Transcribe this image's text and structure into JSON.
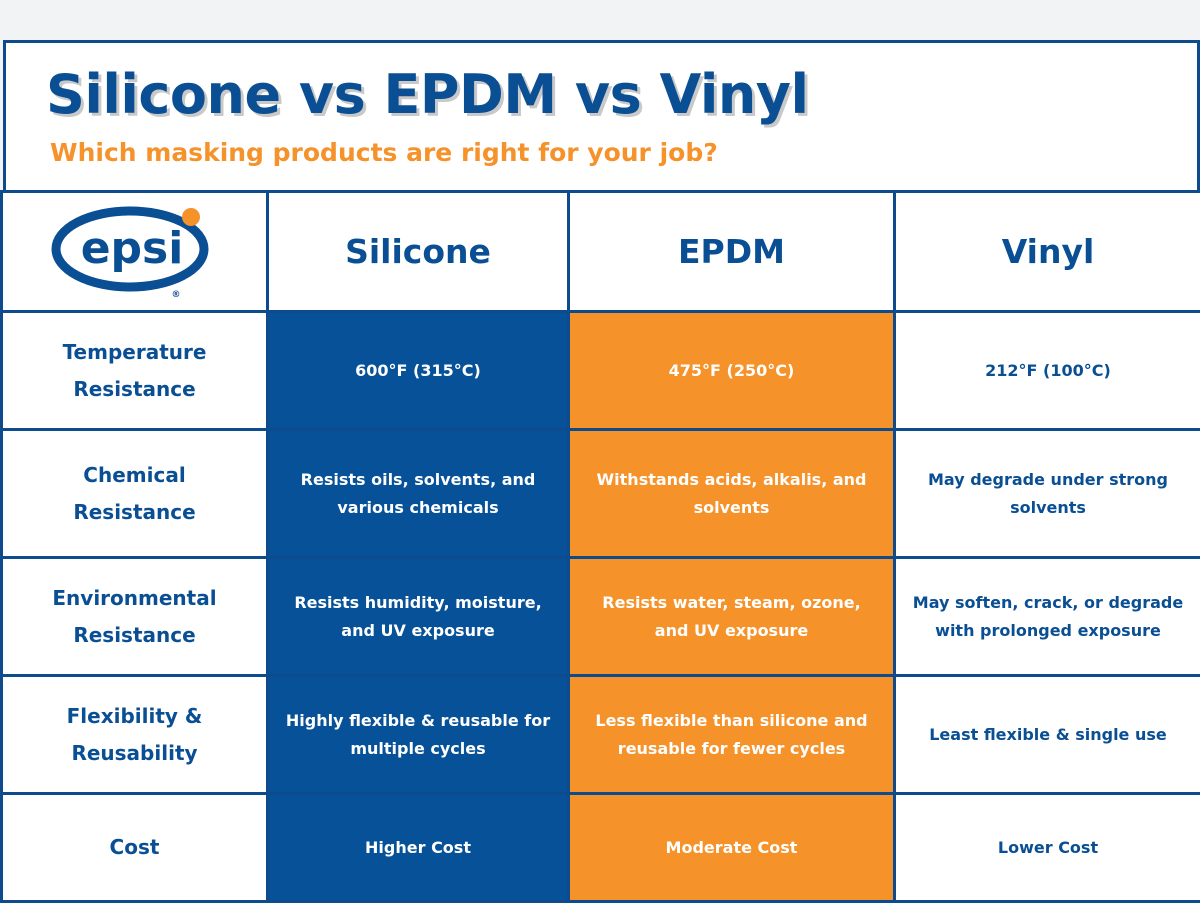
{
  "header": {
    "title": "Silicone vs EPDM vs Vinyl",
    "subtitle": "Which masking products are right for your job?"
  },
  "logo": {
    "text": "epsi",
    "mark": "®"
  },
  "columns": [
    "Silicone",
    "EPDM",
    "Vinyl"
  ],
  "rows": [
    {
      "label": "Temperature Resistance",
      "silicone": "600°F (315°C)",
      "epdm": "475°F (250°C)",
      "vinyl": "212°F (100°C)"
    },
    {
      "label": "Chemical Resistance",
      "silicone": "Resists oils, solvents, and various chemicals",
      "epdm": "Withstands acids, alkalis, and solvents",
      "vinyl": "May degrade under strong solvents"
    },
    {
      "label": "Environmental Resistance",
      "silicone": "Resists humidity, moisture, and UV exposure",
      "epdm": "Resists water, steam, ozone, and UV exposure",
      "vinyl": "May soften, crack, or degrade with prolonged exposure"
    },
    {
      "label": "Flexibility & Reusability",
      "silicone": "Highly flexible & reusable for multiple cycles",
      "epdm": "Less flexible than silicone and reusable for fewer cycles",
      "vinyl": "Least flexible & single use"
    },
    {
      "label": "Cost",
      "silicone": "Higher Cost",
      "epdm": "Moderate Cost",
      "vinyl": "Lower Cost"
    }
  ],
  "colors": {
    "navy": "#0a4f93",
    "silicone_fill": "#065198",
    "epdm_fill": "#f5922a",
    "border": "#0d4b8c",
    "logo_dot": "#f5922a"
  }
}
